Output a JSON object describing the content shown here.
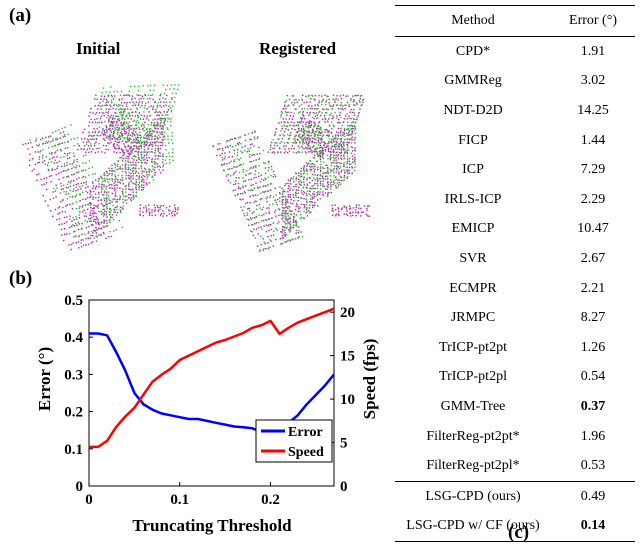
{
  "panel_labels": {
    "a": "(a)",
    "b": "(b)",
    "c": "(c)"
  },
  "point_clouds": {
    "initial_title": "Initial",
    "registered_title": "Registered",
    "colors": {
      "source": "#22c022",
      "target": "#b020b0",
      "structure": "#333333"
    }
  },
  "table": {
    "headers": {
      "method": "Method",
      "error": "Error (°)"
    },
    "rows": [
      {
        "method": "CPD*",
        "error": "1.91",
        "bold": false
      },
      {
        "method": "GMMReg",
        "error": "3.02",
        "bold": false
      },
      {
        "method": "NDT-D2D",
        "error": "14.25",
        "bold": false
      },
      {
        "method": "FICP",
        "error": "1.44",
        "bold": false
      },
      {
        "method": "ICP",
        "error": "7.29",
        "bold": false
      },
      {
        "method": "IRLS-ICP",
        "error": "2.29",
        "bold": false
      },
      {
        "method": "EMICP",
        "error": "10.47",
        "bold": false
      },
      {
        "method": "SVR",
        "error": "2.67",
        "bold": false
      },
      {
        "method": "ECMPR",
        "error": "2.21",
        "bold": false
      },
      {
        "method": "JRMPC",
        "error": "8.27",
        "bold": false
      },
      {
        "method": "TrICP-pt2pt",
        "error": "1.26",
        "bold": false
      },
      {
        "method": "TrICP-pt2pl",
        "error": "0.54",
        "bold": false
      },
      {
        "method": "GMM-Tree",
        "error": "0.37",
        "bold": true
      },
      {
        "method": "FilterReg-pt2pt*",
        "error": "1.96",
        "bold": false
      },
      {
        "method": "FilterReg-pt2pl*",
        "error": "0.53",
        "bold": false
      },
      {
        "method": "LSG-CPD (ours)",
        "error": "0.49",
        "bold": false,
        "separator": true
      },
      {
        "method": "LSG-CPD w/ CF (ours)",
        "error": "0.14",
        "bold": true
      }
    ]
  },
  "chart_data": {
    "type": "line",
    "xlabel": "Truncating Threshold",
    "ylabel_left": "Error (°)",
    "ylabel_right": "Speed (fps)",
    "xlim": [
      0,
      0.27
    ],
    "ylim_left": [
      0,
      0.5
    ],
    "ylim_right": [
      0,
      21.4
    ],
    "xticks": [
      0,
      0.1,
      0.2
    ],
    "xtick_labels": [
      "0",
      "0.1",
      "0.2"
    ],
    "yticks_left": [
      0,
      0.1,
      0.2,
      0.3,
      0.4,
      0.5
    ],
    "yticks_left_labels": [
      "0",
      "0.1",
      "0.2",
      "0.3",
      "0.4",
      "0.5"
    ],
    "yticks_right": [
      0,
      5,
      10,
      15,
      20
    ],
    "yticks_right_labels": [
      "0",
      "5",
      "10",
      "15",
      "20"
    ],
    "grid": false,
    "legend_position": "bottom-right",
    "series": [
      {
        "name": "Error",
        "color": "#0000ff",
        "axis": "left",
        "x": [
          0,
          0.01,
          0.02,
          0.03,
          0.04,
          0.05,
          0.06,
          0.07,
          0.08,
          0.09,
          0.1,
          0.11,
          0.12,
          0.13,
          0.14,
          0.15,
          0.16,
          0.17,
          0.18,
          0.19,
          0.2,
          0.21,
          0.22,
          0.23,
          0.24,
          0.25,
          0.26,
          0.27
        ],
        "y": [
          0.41,
          0.41,
          0.405,
          0.36,
          0.31,
          0.25,
          0.22,
          0.205,
          0.195,
          0.19,
          0.185,
          0.18,
          0.18,
          0.175,
          0.17,
          0.165,
          0.16,
          0.158,
          0.155,
          0.145,
          0.14,
          0.15,
          0.17,
          0.19,
          0.22,
          0.245,
          0.27,
          0.3
        ]
      },
      {
        "name": "Speed",
        "color": "#ff0000",
        "axis": "right",
        "x": [
          0,
          0.01,
          0.02,
          0.03,
          0.04,
          0.05,
          0.06,
          0.07,
          0.08,
          0.09,
          0.1,
          0.11,
          0.12,
          0.13,
          0.14,
          0.15,
          0.16,
          0.17,
          0.18,
          0.19,
          0.2,
          0.21,
          0.22,
          0.23,
          0.24,
          0.25,
          0.26,
          0.27
        ],
        "y": [
          4.5,
          4.5,
          5.2,
          6.8,
          8.0,
          9.0,
          10.5,
          12.0,
          12.8,
          13.5,
          14.5,
          15.0,
          15.5,
          16.0,
          16.5,
          16.8,
          17.2,
          17.6,
          18.2,
          18.5,
          19.0,
          17.5,
          18.2,
          18.8,
          19.2,
          19.6,
          20.0,
          20.4
        ]
      }
    ]
  }
}
